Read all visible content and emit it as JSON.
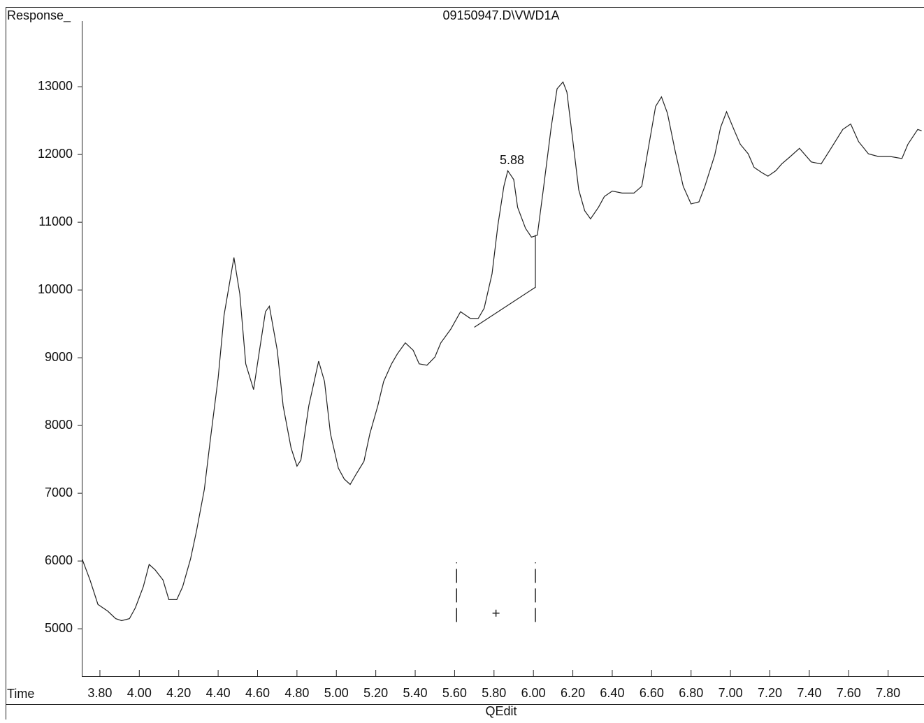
{
  "chart_data": {
    "type": "line",
    "title": "09150947.D\\VWD1A",
    "ylabel": "Response_",
    "xlabel": "Time",
    "footer": "QEdit",
    "xlim": [
      3.708,
      7.975
    ],
    "ylim": [
      4300,
      13950
    ],
    "yticks": [
      5000,
      6000,
      7000,
      8000,
      9000,
      10000,
      11000,
      12000,
      13000
    ],
    "xticks": [
      {
        "value": 3.8,
        "label": "3.80"
      },
      {
        "value": 4.0,
        "label": "4.00"
      },
      {
        "value": 4.2,
        "label": "4.20"
      },
      {
        "value": 4.4,
        "label": "4.40"
      },
      {
        "value": 4.6,
        "label": "4.60"
      },
      {
        "value": 4.8,
        "label": "4.80"
      },
      {
        "value": 5.0,
        "label": "5.00"
      },
      {
        "value": 5.2,
        "label": "5.20"
      },
      {
        "value": 5.4,
        "label": "5.40"
      },
      {
        "value": 5.6,
        "label": "5.60"
      },
      {
        "value": 5.8,
        "label": "5.80"
      },
      {
        "value": 6.0,
        "label": "6.00"
      },
      {
        "value": 6.2,
        "label": "6.20"
      },
      {
        "value": 6.4,
        "label": "6.40"
      },
      {
        "value": 6.6,
        "label": "6.60"
      },
      {
        "value": 6.8,
        "label": "6.80"
      },
      {
        "value": 7.0,
        "label": "7.00"
      },
      {
        "value": 7.2,
        "label": "7.20"
      },
      {
        "value": 7.4,
        "label": "7.40"
      },
      {
        "value": 7.6,
        "label": "7.60"
      },
      {
        "value": 7.8,
        "label": "7.80"
      }
    ],
    "x": [
      3.71,
      3.75,
      3.79,
      3.84,
      3.88,
      3.91,
      3.95,
      3.98,
      4.02,
      4.05,
      4.08,
      4.12,
      4.15,
      4.19,
      4.22,
      4.26,
      4.29,
      4.33,
      4.36,
      4.4,
      4.43,
      4.48,
      4.51,
      4.54,
      4.58,
      4.61,
      4.64,
      4.66,
      4.7,
      4.73,
      4.77,
      4.8,
      4.82,
      4.86,
      4.91,
      4.94,
      4.97,
      5.01,
      5.04,
      5.07,
      5.1,
      5.14,
      5.17,
      5.21,
      5.24,
      5.28,
      5.31,
      5.35,
      5.39,
      5.42,
      5.46,
      5.5,
      5.53,
      5.58,
      5.63,
      5.68,
      5.72,
      5.75,
      5.79,
      5.82,
      5.85,
      5.87,
      5.9,
      5.92,
      5.96,
      5.99,
      6.02,
      6.05,
      6.09,
      6.12,
      6.15,
      6.17,
      6.2,
      6.23,
      6.26,
      6.29,
      6.33,
      6.36,
      6.4,
      6.45,
      6.51,
      6.55,
      6.58,
      6.62,
      6.65,
      6.68,
      6.72,
      6.76,
      6.8,
      6.84,
      6.87,
      6.92,
      6.95,
      6.98,
      7.02,
      7.05,
      7.09,
      7.12,
      7.16,
      7.19,
      7.23,
      7.26,
      7.3,
      7.35,
      7.41,
      7.46,
      7.51,
      7.57,
      7.61,
      7.65,
      7.7,
      7.75,
      7.81,
      7.87,
      7.9,
      7.95,
      7.97
    ],
    "series": [
      {
        "color": "#222222",
        "values": [
          6028,
          5720,
          5360,
          5260,
          5150,
          5120,
          5150,
          5310,
          5620,
          5950,
          5870,
          5720,
          5430,
          5430,
          5620,
          6030,
          6440,
          7060,
          7780,
          8700,
          9630,
          10480,
          9940,
          8910,
          8530,
          9110,
          9680,
          9760,
          9110,
          8290,
          7670,
          7400,
          7490,
          8290,
          8950,
          8650,
          7880,
          7370,
          7210,
          7130,
          7280,
          7470,
          7880,
          8290,
          8650,
          8910,
          9060,
          9220,
          9110,
          8910,
          8890,
          9010,
          9220,
          9420,
          9680,
          9580,
          9580,
          9730,
          10240,
          10960,
          11530,
          11760,
          11630,
          11220,
          10910,
          10780,
          10810,
          11480,
          12400,
          12970,
          13070,
          12920,
          12200,
          11480,
          11170,
          11050,
          11220,
          11380,
          11460,
          11430,
          11430,
          11530,
          12040,
          12710,
          12850,
          12610,
          12040,
          11530,
          11270,
          11300,
          11530,
          11990,
          12400,
          12630,
          12350,
          12150,
          12010,
          11810,
          11730,
          11680,
          11760,
          11860,
          11960,
          12090,
          11890,
          11860,
          12090,
          12370,
          12450,
          12190,
          12010,
          11970,
          11970,
          11940,
          12150,
          12370,
          12350
        ]
      }
    ],
    "baseline": {
      "x": [
        5.7,
        6.01,
        6.01
      ],
      "y": [
        9450,
        10040,
        10810
      ]
    },
    "annotations": [
      {
        "text": "5.88",
        "x": 5.87,
        "y": 11760
      }
    ],
    "event_marks": {
      "x": [
        5.61,
        6.01
      ],
      "y": [
        5100,
        5980
      ]
    },
    "cross": {
      "x": 5.81,
      "y": 5230
    }
  }
}
